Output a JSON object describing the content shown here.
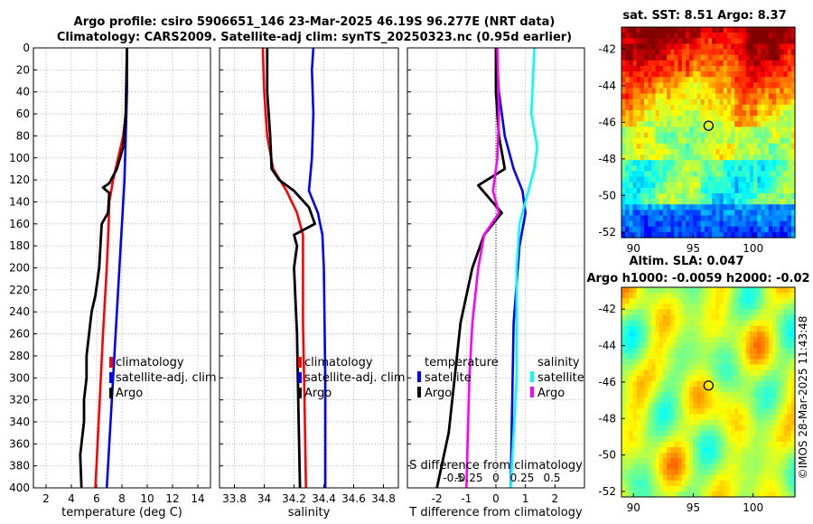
{
  "title_line1": "Argo profile: csiro 5906651_146 23-Mar-2025 46.19S 96.277E (NRT data)",
  "title_line2": "Climatology: CARS2009. Satellite-adj clim: synTS_20250323.nc (0.95d earlier)",
  "sst_title": "sat. SST: 8.51 Argo: 8.37",
  "sla_title1": "Altim. SLA: 0.047",
  "sla_title2": "Argo h1000: -0.0059 h2000: -0.02",
  "footer": "©IMOS 28-Mar-2025 11:43:48",
  "colors": {
    "climatology": "#ff0000",
    "satellite": "#0000ff",
    "argo": "#000000",
    "sat_salinity": "#00ffff",
    "clim_salinity": "#ff00ff"
  },
  "chart_data": [
    {
      "type": "line",
      "title": "",
      "xlabel": "temperature (deg C)",
      "ylabel": "",
      "xlim": [
        1,
        15
      ],
      "ylim": [
        400,
        0
      ],
      "xticks": [
        "2",
        "4",
        "6",
        "8",
        "10",
        "12",
        "14"
      ],
      "yticks": [
        "0",
        "20",
        "40",
        "60",
        "80",
        "100",
        "120",
        "140",
        "160",
        "180",
        "200",
        "220",
        "240",
        "260",
        "280",
        "300",
        "320",
        "340",
        "360",
        "380",
        "400"
      ],
      "legend": [
        "climatology",
        "satellite-adj. clim",
        "Argo"
      ],
      "series": [
        {
          "name": "climatology",
          "color": "#ff0000",
          "x": [
            8.4,
            8.3,
            8.1,
            7.7,
            7.3,
            7.0,
            6.95,
            6.8,
            6.5,
            6.2,
            5.9
          ],
          "y": [
            0,
            60,
            80,
            100,
            120,
            140,
            160,
            200,
            260,
            330,
            400
          ]
        },
        {
          "name": "satellite-adj. clim",
          "color": "#0000ff",
          "x": [
            8.4,
            8.4,
            8.3,
            8.2,
            8.0,
            7.8,
            7.6,
            7.3,
            7.0,
            6.8
          ],
          "y": [
            0,
            40,
            80,
            120,
            160,
            200,
            240,
            300,
            360,
            400
          ]
        },
        {
          "name": "Argo",
          "color": "#000000",
          "x": [
            8.4,
            8.3,
            8.1,
            7.6,
            7.0,
            6.5,
            7.0,
            6.9,
            6.4,
            6.2,
            5.9,
            5.6,
            5.5,
            5.2,
            5.2,
            5.0,
            5.0,
            4.7,
            4.8
          ],
          "y": [
            0,
            60,
            90,
            110,
            123,
            127,
            132,
            150,
            160,
            200,
            225,
            240,
            250,
            280,
            300,
            320,
            340,
            370,
            400
          ]
        }
      ]
    },
    {
      "type": "line",
      "title": "",
      "xlabel": "salinity",
      "ylabel": "",
      "xlim": [
        33.7,
        34.9
      ],
      "ylim": [
        400,
        0
      ],
      "xticks": [
        "33.8",
        "34",
        "34.2",
        "34.4",
        "34.6",
        "34.8"
      ],
      "legend": [
        "climatology",
        "satellite-adj. clim",
        "Argo"
      ],
      "series": [
        {
          "name": "climatology",
          "color": "#ff0000",
          "x": [
            33.99,
            34.0,
            34.02,
            34.06,
            34.15,
            34.22,
            34.26,
            34.26,
            34.27,
            34.28
          ],
          "y": [
            0,
            40,
            80,
            110,
            130,
            150,
            170,
            250,
            320,
            400
          ]
        },
        {
          "name": "satellite-adj. clim",
          "color": "#0000ff",
          "x": [
            34.33,
            34.32,
            34.33,
            34.32,
            34.3,
            34.36,
            34.39,
            34.4,
            34.41,
            34.41
          ],
          "y": [
            0,
            20,
            60,
            100,
            130,
            150,
            170,
            200,
            300,
            400
          ]
        },
        {
          "name": "Argo",
          "color": "#000000",
          "x": [
            34.02,
            34.02,
            34.04,
            34.05,
            34.1,
            34.2,
            34.3,
            34.34,
            34.2,
            34.22,
            34.2,
            34.22,
            34.23,
            34.24
          ],
          "y": [
            0,
            40,
            80,
            110,
            120,
            130,
            145,
            160,
            170,
            180,
            200,
            260,
            330,
            400
          ]
        }
      ]
    },
    {
      "type": "line",
      "title": "",
      "xlabel": "T difference from climatology",
      "x2label": "S difference from climatology",
      "ylabel": "",
      "xlim": [
        -3,
        3
      ],
      "ylim": [
        400,
        0
      ],
      "xticks": [
        "-2",
        "-1",
        "0",
        "1",
        "2"
      ],
      "x2ticks": [
        "-0.5",
        "-0.25",
        "0",
        "0.25",
        "0.5"
      ],
      "legend_temperature": {
        "title": "temperature",
        "items": [
          "satellite",
          "Argo"
        ]
      },
      "legend_salinity": {
        "title": "salinity",
        "items": [
          "satellite",
          "Argo"
        ]
      },
      "series": [
        {
          "name": "temperature satellite",
          "color": "#0000ff",
          "x": [
            0,
            0.1,
            0.3,
            0.6,
            0.9,
            1.0,
            0.8,
            0.6,
            0.5
          ],
          "y": [
            0,
            40,
            80,
            110,
            130,
            150,
            180,
            250,
            400
          ]
        },
        {
          "name": "temperature Argo",
          "color": "#000000",
          "x": [
            0,
            0,
            0.1,
            0.3,
            -0.6,
            0.2,
            -0.4,
            -0.8,
            -1.2,
            -1.4,
            -1.6,
            -2.0
          ],
          "y": [
            0,
            40,
            80,
            110,
            125,
            150,
            170,
            200,
            250,
            300,
            350,
            400
          ]
        },
        {
          "name": "salinity satellite",
          "color": "#00ffff",
          "x": [
            1.3,
            1.2,
            1.4,
            1.3,
            1.1,
            0.8,
            0.7,
            0.7,
            0.5
          ],
          "y": [
            0,
            60,
            90,
            110,
            130,
            160,
            200,
            300,
            400
          ]
        },
        {
          "name": "salinity Argo",
          "color": "#ff00ff",
          "x": [
            0.05,
            0.1,
            0.05,
            -0.1,
            0.1,
            -0.4,
            -0.6,
            -0.8,
            -0.9,
            -1.0
          ],
          "y": [
            0,
            60,
            100,
            130,
            150,
            170,
            200,
            250,
            300,
            400
          ]
        }
      ]
    },
    {
      "type": "heatmap",
      "title": "sat. SST: 8.51 Argo: 8.37",
      "xlim": [
        89,
        103.5
      ],
      "ylim": [
        -52.3,
        -40.8
      ],
      "xticks": [
        "90",
        "95",
        "100"
      ],
      "yticks": [
        "-42",
        "-44",
        "-46",
        "-48",
        "-50",
        "-52"
      ],
      "marker": {
        "lon": 96.277,
        "lat": -46.19
      }
    },
    {
      "type": "heatmap",
      "title": "Altim. SLA: 0.047",
      "xlim": [
        89,
        103.5
      ],
      "ylim": [
        -52.3,
        -40.8
      ],
      "xticks": [
        "90",
        "95",
        "100"
      ],
      "yticks": [
        "-42",
        "-44",
        "-46",
        "-48",
        "-50",
        "-52"
      ],
      "marker": {
        "lon": 96.277,
        "lat": -46.19
      }
    }
  ]
}
